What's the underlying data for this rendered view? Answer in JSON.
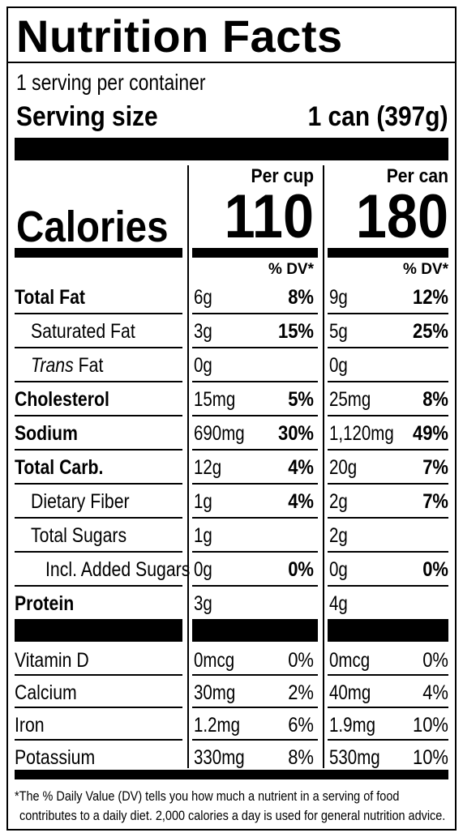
{
  "title": "Nutrition Facts",
  "servings_per_container": "1 serving per container",
  "serving_size_label": "Serving size",
  "serving_size_value": "1 can (397g)",
  "calories_label": "Calories",
  "columns": [
    {
      "header": "Per cup",
      "calories": "110",
      "dv_header": "% DV*"
    },
    {
      "header": "Per can",
      "calories": "180",
      "dv_header": "% DV*"
    }
  ],
  "nutrients": [
    {
      "name": "Total Fat",
      "bold": true,
      "indent": 0,
      "cols": [
        {
          "amount": "6g",
          "dv": "8%"
        },
        {
          "amount": "9g",
          "dv": "12%"
        }
      ]
    },
    {
      "name": "Saturated Fat",
      "bold": false,
      "indent": 1,
      "cols": [
        {
          "amount": "3g",
          "dv": "15%"
        },
        {
          "amount": "5g",
          "dv": "25%"
        }
      ]
    },
    {
      "name_italic": "Trans",
      "name_rest": " Fat",
      "bold": false,
      "indent": 1,
      "cols": [
        {
          "amount": "0g",
          "dv": ""
        },
        {
          "amount": "0g",
          "dv": ""
        }
      ]
    },
    {
      "name": "Cholesterol",
      "bold": true,
      "indent": 0,
      "cols": [
        {
          "amount": "15mg",
          "dv": "5%"
        },
        {
          "amount": "25mg",
          "dv": "8%"
        }
      ]
    },
    {
      "name": "Sodium",
      "bold": true,
      "indent": 0,
      "cols": [
        {
          "amount": "690mg",
          "dv": "30%"
        },
        {
          "amount": "1,120mg",
          "dv": "49%"
        }
      ]
    },
    {
      "name": "Total Carb.",
      "bold": true,
      "indent": 0,
      "cols": [
        {
          "amount": "12g",
          "dv": "4%"
        },
        {
          "amount": "20g",
          "dv": "7%"
        }
      ]
    },
    {
      "name": "Dietary Fiber",
      "bold": false,
      "indent": 1,
      "cols": [
        {
          "amount": "1g",
          "dv": "4%"
        },
        {
          "amount": "2g",
          "dv": "7%"
        }
      ]
    },
    {
      "name": "Total Sugars",
      "bold": false,
      "indent": 1,
      "cols": [
        {
          "amount": "1g",
          "dv": ""
        },
        {
          "amount": "2g",
          "dv": ""
        }
      ]
    },
    {
      "name": "Incl. Added Sugars",
      "bold": false,
      "indent": 2,
      "cols": [
        {
          "amount": "0g",
          "dv": "0%"
        },
        {
          "amount": "0g",
          "dv": "0%"
        }
      ]
    },
    {
      "name": "Protein",
      "bold": true,
      "indent": 0,
      "cols": [
        {
          "amount": "3g",
          "dv": ""
        },
        {
          "amount": "4g",
          "dv": ""
        }
      ]
    }
  ],
  "vitamins": [
    {
      "name": "Vitamin D",
      "cols": [
        {
          "amount": "0mcg",
          "dv": "0%"
        },
        {
          "amount": "0mcg",
          "dv": "0%"
        }
      ]
    },
    {
      "name": "Calcium",
      "cols": [
        {
          "amount": "30mg",
          "dv": "2%"
        },
        {
          "amount": "40mg",
          "dv": "4%"
        }
      ]
    },
    {
      "name": "Iron",
      "cols": [
        {
          "amount": "1.2mg",
          "dv": "6%"
        },
        {
          "amount": "1.9mg",
          "dv": "10%"
        }
      ]
    },
    {
      "name": "Potassium",
      "cols": [
        {
          "amount": "330mg",
          "dv": "8%"
        },
        {
          "amount": "530mg",
          "dv": "10%"
        }
      ]
    }
  ],
  "footnote_line1": "*The % Daily Value (DV) tells you how much a nutrient in a serving of food",
  "footnote_line2": "contributes to a daily diet. 2,000 calories a day is used for general nutrition advice."
}
